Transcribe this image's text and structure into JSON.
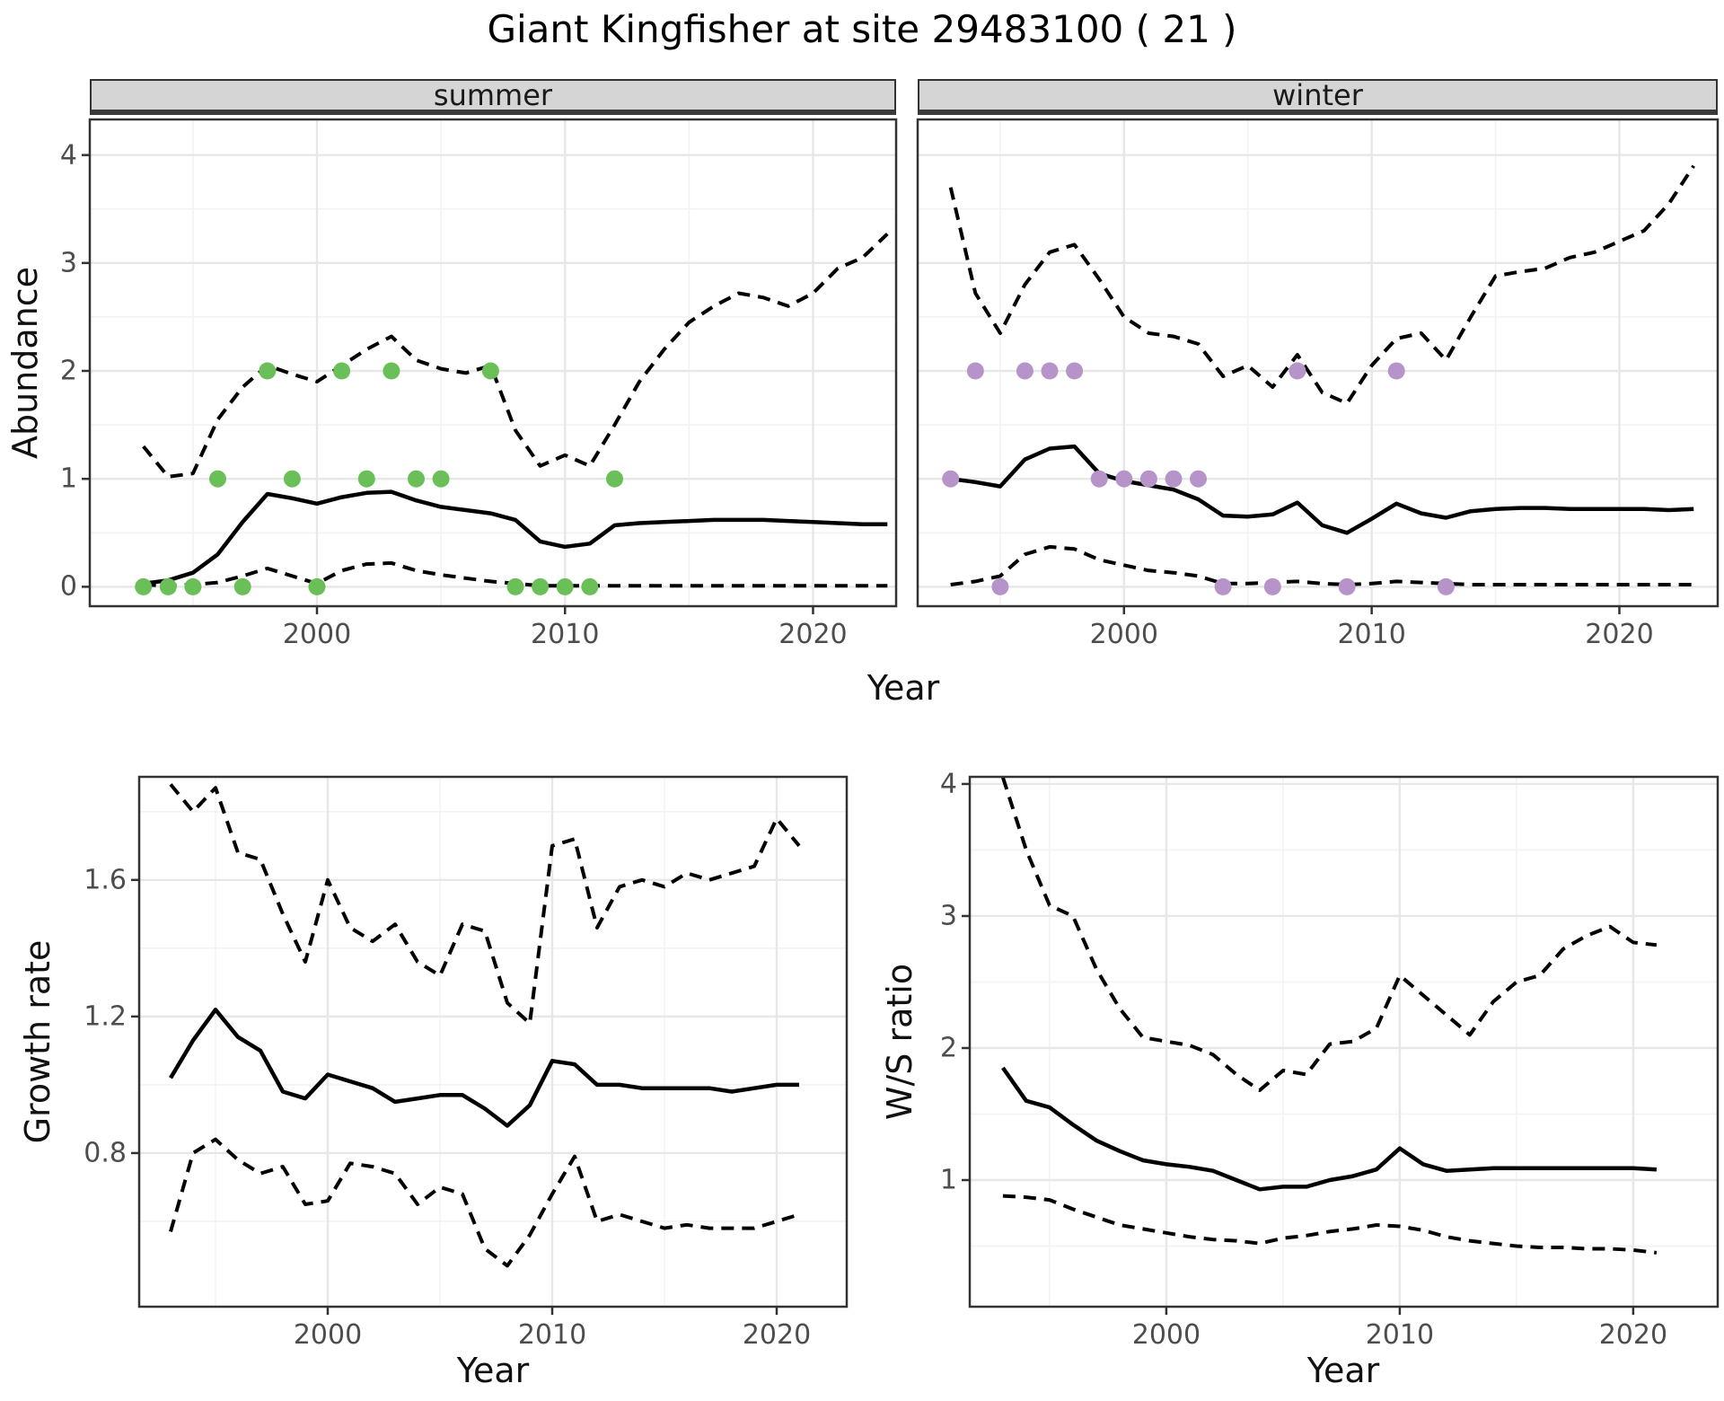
{
  "title": "Giant Kingfisher at site 29483100 ( 21 )",
  "colors": {
    "line": "#000000",
    "observation_summer": "#6bbf59",
    "observation_winter": "#b694c9",
    "strip_background": "#d5d5d5",
    "grid_major": "#e7e7e7",
    "grid_minor": "#f3f3f3",
    "panel_border": "#333333",
    "tick_text": "#4d4d4d"
  },
  "chart_data": [
    {
      "type": "line",
      "facet_label": "summer",
      "xlabel": "Year",
      "ylabel": "Abundance",
      "xlim": [
        1990.84,
        2023.35
      ],
      "ylim": [
        -0.18,
        4.33
      ],
      "x_ticks": [
        2000,
        2010,
        2020
      ],
      "x_tick_labels": [
        "2000",
        "2010",
        "2020"
      ],
      "x_minor_ticks": [
        1995,
        2005,
        2015
      ],
      "y_ticks": [
        0,
        1,
        2,
        3,
        4
      ],
      "y_tick_labels": [
        "0",
        "1",
        "2",
        "3",
        "4"
      ],
      "y_minor_ticks": [
        0.5,
        1.5,
        2.5,
        3.5
      ],
      "x": [
        1993,
        1994,
        1995,
        1996,
        1997,
        1998,
        1999,
        2000,
        2001,
        2002,
        2003,
        2004,
        2005,
        2006,
        2007,
        2008,
        2009,
        2010,
        2011,
        2012,
        2013,
        2014,
        2015,
        2016,
        2017,
        2018,
        2019,
        2020,
        2021,
        2022,
        2023
      ],
      "series": [
        {
          "name": "upper_ci",
          "style": "dashed",
          "color": "#000000",
          "values": [
            1.3,
            1.02,
            1.05,
            1.55,
            1.85,
            2.05,
            1.97,
            1.9,
            2.05,
            2.2,
            2.32,
            2.1,
            2.02,
            1.98,
            2.05,
            1.45,
            1.12,
            1.22,
            1.12,
            1.5,
            1.9,
            2.2,
            2.45,
            2.6,
            2.72,
            2.68,
            2.6,
            2.72,
            2.95,
            3.05,
            3.27
          ]
        },
        {
          "name": "median",
          "style": "solid",
          "color": "#000000",
          "values": [
            0.03,
            0.06,
            0.13,
            0.3,
            0.6,
            0.86,
            0.82,
            0.77,
            0.83,
            0.87,
            0.88,
            0.8,
            0.74,
            0.71,
            0.68,
            0.62,
            0.42,
            0.37,
            0.4,
            0.57,
            0.59,
            0.6,
            0.61,
            0.62,
            0.62,
            0.62,
            0.61,
            0.6,
            0.59,
            0.58,
            0.58
          ]
        },
        {
          "name": "lower_ci",
          "style": "dashed",
          "color": "#000000",
          "values": [
            0.02,
            0.01,
            0.02,
            0.04,
            0.1,
            0.17,
            0.1,
            0.03,
            0.15,
            0.21,
            0.22,
            0.15,
            0.11,
            0.08,
            0.05,
            0.03,
            0.01,
            0.01,
            0.01,
            0.01,
            0.01,
            0.01,
            0.01,
            0.01,
            0.01,
            0.01,
            0.01,
            0.01,
            0.01,
            0.01,
            0.01
          ]
        }
      ],
      "points": {
        "name": "observations",
        "color": "#6bbf59",
        "data": [
          [
            1993,
            0
          ],
          [
            1994,
            0
          ],
          [
            1995,
            0
          ],
          [
            1996,
            1
          ],
          [
            1997,
            0
          ],
          [
            1998,
            2
          ],
          [
            1999,
            1
          ],
          [
            2000,
            0
          ],
          [
            2001,
            2
          ],
          [
            2002,
            1
          ],
          [
            2003,
            2
          ],
          [
            2004,
            1
          ],
          [
            2005,
            1
          ],
          [
            2007,
            2
          ],
          [
            2008,
            0
          ],
          [
            2009,
            0
          ],
          [
            2010,
            0
          ],
          [
            2011,
            0
          ],
          [
            2012,
            1
          ]
        ]
      }
    },
    {
      "type": "line",
      "facet_label": "winter",
      "xlabel": "Year",
      "ylabel": "Abundance",
      "xlim": [
        1991.67,
        2023.97
      ],
      "ylim": [
        -0.18,
        4.33
      ],
      "x_ticks": [
        2000,
        2010,
        2020
      ],
      "x_tick_labels": [
        "2000",
        "2010",
        "2020"
      ],
      "x_minor_ticks": [
        1995,
        2005,
        2015
      ],
      "y_ticks": [
        0,
        1,
        2,
        3,
        4
      ],
      "y_tick_labels": [
        "0",
        "1",
        "2",
        "3",
        "4"
      ],
      "y_minor_ticks": [
        0.5,
        1.5,
        2.5,
        3.5
      ],
      "x": [
        1993,
        1994,
        1995,
        1996,
        1997,
        1998,
        1999,
        2000,
        2001,
        2002,
        2003,
        2004,
        2005,
        2006,
        2007,
        2008,
        2009,
        2010,
        2011,
        2012,
        2013,
        2014,
        2015,
        2016,
        2017,
        2018,
        2019,
        2020,
        2021,
        2022,
        2023
      ],
      "series": [
        {
          "name": "upper_ci",
          "style": "dashed",
          "color": "#000000",
          "values": [
            3.7,
            2.72,
            2.35,
            2.8,
            3.1,
            3.17,
            2.85,
            2.5,
            2.35,
            2.32,
            2.25,
            1.95,
            2.05,
            1.85,
            2.15,
            1.8,
            1.7,
            2.05,
            2.3,
            2.35,
            2.1,
            2.5,
            2.88,
            2.92,
            2.95,
            3.05,
            3.1,
            3.2,
            3.3,
            3.55,
            3.9
          ]
        },
        {
          "name": "median",
          "style": "solid",
          "color": "#000000",
          "values": [
            1.0,
            0.97,
            0.93,
            1.18,
            1.28,
            1.3,
            1.05,
            0.98,
            0.94,
            0.9,
            0.81,
            0.66,
            0.65,
            0.67,
            0.78,
            0.57,
            0.5,
            0.63,
            0.77,
            0.68,
            0.64,
            0.7,
            0.72,
            0.73,
            0.73,
            0.72,
            0.72,
            0.72,
            0.72,
            0.71,
            0.72
          ]
        },
        {
          "name": "lower_ci",
          "style": "dashed",
          "color": "#000000",
          "values": [
            0.02,
            0.05,
            0.1,
            0.3,
            0.37,
            0.35,
            0.25,
            0.2,
            0.15,
            0.13,
            0.1,
            0.03,
            0.03,
            0.04,
            0.05,
            0.03,
            0.02,
            0.03,
            0.05,
            0.04,
            0.03,
            0.02,
            0.02,
            0.02,
            0.02,
            0.02,
            0.02,
            0.02,
            0.02,
            0.02,
            0.02
          ]
        }
      ],
      "points": {
        "name": "observations",
        "color": "#b694c9",
        "data": [
          [
            1993,
            1
          ],
          [
            1994,
            2
          ],
          [
            1995,
            0
          ],
          [
            1996,
            2
          ],
          [
            1997,
            2
          ],
          [
            1998,
            2
          ],
          [
            1999,
            1
          ],
          [
            2000,
            1
          ],
          [
            2001,
            1
          ],
          [
            2002,
            1
          ],
          [
            2003,
            1
          ],
          [
            2004,
            0
          ],
          [
            2006,
            0
          ],
          [
            2007,
            2
          ],
          [
            2009,
            0
          ],
          [
            2011,
            2
          ],
          [
            2013,
            0
          ]
        ]
      }
    },
    {
      "type": "line",
      "facet_label": "",
      "xlabel": "Year",
      "ylabel": "Growth rate",
      "xlim": [
        1991.6,
        2023.12
      ],
      "ylim": [
        0.35,
        1.902
      ],
      "x_ticks": [
        2000,
        2010,
        2020
      ],
      "x_tick_labels": [
        "2000",
        "2010",
        "2020"
      ],
      "x_minor_ticks": [
        1995,
        2005,
        2015
      ],
      "y_ticks": [
        0.8,
        1.2,
        1.6
      ],
      "y_tick_labels": [
        "0.8",
        "1.2",
        "1.6"
      ],
      "y_minor_ticks": [
        0.6,
        1.0,
        1.4,
        1.8
      ],
      "x": [
        1993,
        1994,
        1995,
        1996,
        1997,
        1998,
        1999,
        2000,
        2001,
        2002,
        2003,
        2004,
        2005,
        2006,
        2007,
        2008,
        2009,
        2010,
        2011,
        2012,
        2013,
        2014,
        2015,
        2016,
        2017,
        2018,
        2019,
        2020,
        2021
      ],
      "series": [
        {
          "name": "upper_ci",
          "style": "dashed",
          "color": "#000000",
          "values": [
            1.88,
            1.8,
            1.87,
            1.68,
            1.66,
            1.5,
            1.36,
            1.6,
            1.46,
            1.42,
            1.47,
            1.36,
            1.32,
            1.47,
            1.45,
            1.24,
            1.18,
            1.7,
            1.72,
            1.46,
            1.58,
            1.6,
            1.58,
            1.62,
            1.6,
            1.62,
            1.64,
            1.78,
            1.7
          ]
        },
        {
          "name": "median",
          "style": "solid",
          "color": "#000000",
          "values": [
            1.02,
            1.13,
            1.22,
            1.14,
            1.1,
            0.98,
            0.96,
            1.03,
            1.01,
            0.99,
            0.95,
            0.96,
            0.97,
            0.97,
            0.93,
            0.88,
            0.94,
            1.07,
            1.06,
            1.0,
            1.0,
            0.99,
            0.99,
            0.99,
            0.99,
            0.98,
            0.99,
            1.0,
            1.0
          ]
        },
        {
          "name": "lower_ci",
          "style": "dashed",
          "color": "#000000",
          "values": [
            0.57,
            0.8,
            0.84,
            0.78,
            0.74,
            0.76,
            0.65,
            0.66,
            0.77,
            0.76,
            0.74,
            0.65,
            0.7,
            0.68,
            0.52,
            0.47,
            0.56,
            0.68,
            0.79,
            0.6,
            0.62,
            0.6,
            0.58,
            0.59,
            0.58,
            0.58,
            0.58,
            0.6,
            0.62
          ]
        }
      ],
      "points": null
    },
    {
      "type": "line",
      "facet_label": "",
      "xlabel": "Year",
      "ylabel": "W/S ratio",
      "xlim": [
        1991.58,
        2023.62
      ],
      "ylim": [
        0.041,
        4.054
      ],
      "x_ticks": [
        2000,
        2010,
        2020
      ],
      "x_tick_labels": [
        "2000",
        "2010",
        "2020"
      ],
      "x_minor_ticks": [
        1995,
        2005,
        2015
      ],
      "y_ticks": [
        1,
        2,
        3,
        4
      ],
      "y_tick_labels": [
        "1",
        "2",
        "3",
        "4"
      ],
      "y_minor_ticks": [
        0.5,
        1.5,
        2.5,
        3.5
      ],
      "x": [
        1993,
        1994,
        1995,
        1996,
        1997,
        1998,
        1999,
        2000,
        2001,
        2002,
        2003,
        2004,
        2005,
        2006,
        2007,
        2008,
        2009,
        2010,
        2011,
        2012,
        2013,
        2014,
        2015,
        2016,
        2017,
        2018,
        2019,
        2020,
        2021
      ],
      "series": [
        {
          "name": "upper_ci",
          "style": "dashed",
          "color": "#000000",
          "values": [
            4.05,
            3.5,
            3.08,
            3.0,
            2.6,
            2.3,
            2.08,
            2.05,
            2.02,
            1.95,
            1.8,
            1.68,
            1.83,
            1.8,
            2.03,
            2.05,
            2.15,
            2.55,
            2.4,
            2.25,
            2.1,
            2.35,
            2.5,
            2.55,
            2.75,
            2.85,
            2.92,
            2.8,
            2.78
          ]
        },
        {
          "name": "median",
          "style": "solid",
          "color": "#000000",
          "values": [
            1.85,
            1.6,
            1.55,
            1.42,
            1.3,
            1.22,
            1.15,
            1.12,
            1.1,
            1.07,
            1.0,
            0.93,
            0.95,
            0.95,
            1.0,
            1.03,
            1.08,
            1.24,
            1.12,
            1.07,
            1.08,
            1.09,
            1.09,
            1.09,
            1.09,
            1.09,
            1.09,
            1.09,
            1.08
          ]
        },
        {
          "name": "lower_ci",
          "style": "dashed",
          "color": "#000000",
          "values": [
            0.88,
            0.87,
            0.85,
            0.78,
            0.72,
            0.66,
            0.63,
            0.6,
            0.57,
            0.55,
            0.54,
            0.52,
            0.56,
            0.58,
            0.61,
            0.63,
            0.66,
            0.65,
            0.62,
            0.57,
            0.54,
            0.52,
            0.5,
            0.49,
            0.49,
            0.48,
            0.48,
            0.47,
            0.45
          ]
        }
      ],
      "points": null
    }
  ]
}
